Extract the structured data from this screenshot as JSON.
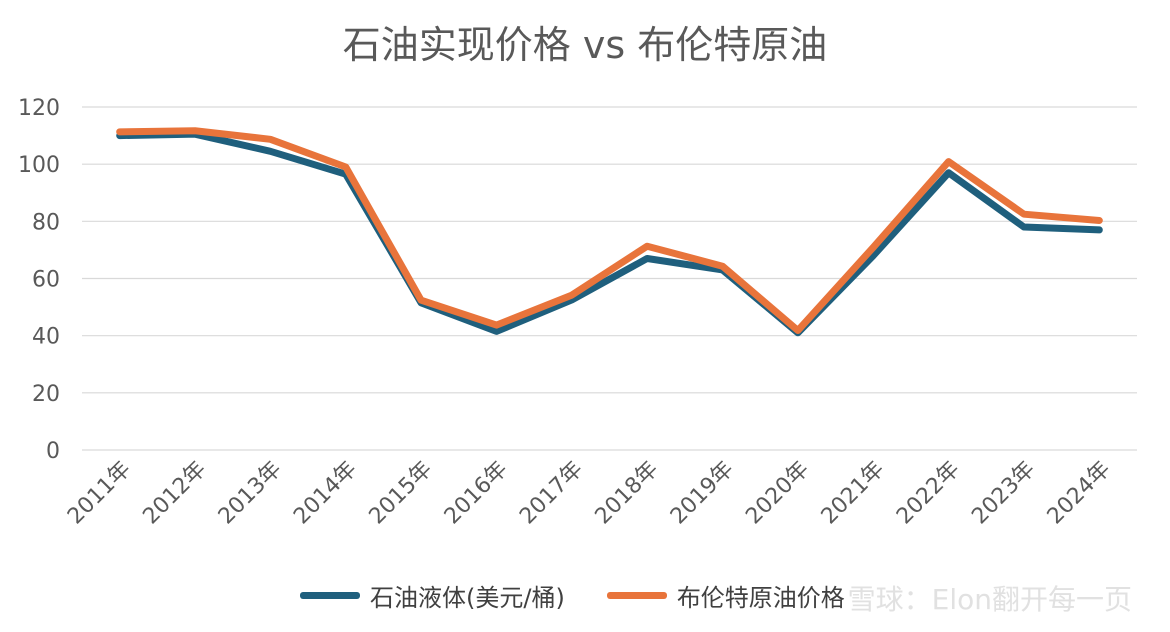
{
  "colors": {
    "series1": "#1f5f7d",
    "series2": "#e8743b",
    "grid": "#d9d9d9",
    "text": "#595959"
  },
  "watermark": "雪球：Elon翻开每一页",
  "chart_data": {
    "type": "line",
    "title": "石油实现价格 vs 布伦特原油",
    "categories": [
      "2011年",
      "2012年",
      "2013年",
      "2014年",
      "2015年",
      "2016年",
      "2017年",
      "2018年",
      "2019年",
      "2020年",
      "2021年",
      "2022年",
      "2023年",
      "2024年"
    ],
    "series": [
      {
        "name": "石油液体(美元/桶)",
        "values": [
          110,
          110.5,
          104.5,
          96.5,
          51.5,
          41.5,
          52.5,
          67,
          63,
          41,
          68,
          97,
          78,
          77
        ]
      },
      {
        "name": "布伦特原油价格",
        "values": [
          111.3,
          111.7,
          108.7,
          99,
          52.4,
          43.7,
          54.2,
          71.3,
          64.3,
          41.8,
          70.9,
          100.9,
          82.5,
          80.3
        ]
      }
    ],
    "yticks": [
      0,
      20,
      40,
      60,
      80,
      100,
      120
    ],
    "ylim": [
      0,
      120
    ],
    "grid": true,
    "legend": "bottom"
  }
}
